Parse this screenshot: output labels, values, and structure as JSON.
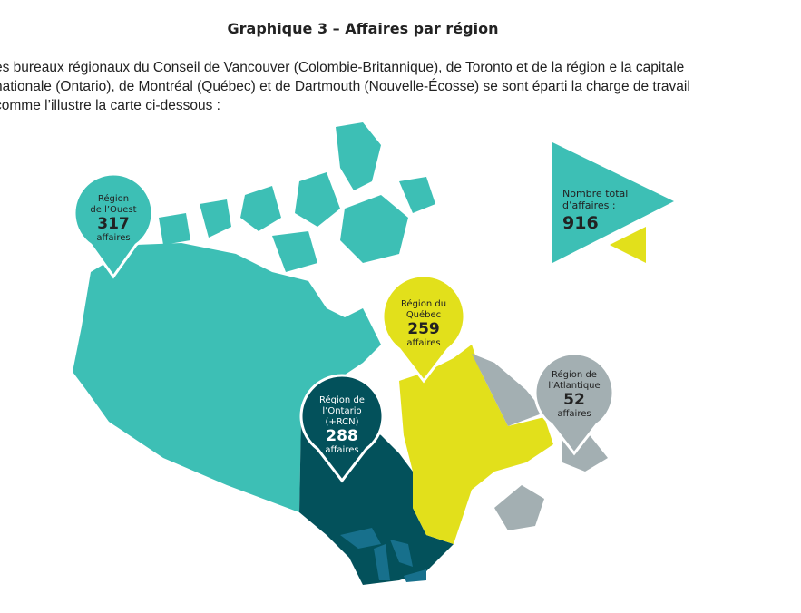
{
  "title": "Graphique 3 – Affaires par région",
  "intro": "es bureaux régionaux du Conseil de Vancouver (Colombie-Britannique), de Toronto et de la région e la capitale nationale (Ontario), de Montréal (Québec) et de Dartmouth (Nouvelle-Écosse) se sont éparti la charge de travail comme l’illustre la carte ci-dessous :",
  "colors": {
    "west": "#3dbfb5",
    "ontario": "#03515b",
    "quebec": "#e2e01b",
    "atlantic": "#a3afb2",
    "lakes": "#17708c"
  },
  "total": {
    "label_line1": "Nombre total",
    "label_line2": "d’affaires :",
    "value": "916"
  },
  "regions": [
    {
      "id": "west",
      "line1": "Région",
      "line2": "de l’Ouest",
      "count": "317",
      "unit": "affaires"
    },
    {
      "id": "quebec",
      "line1": "Région du",
      "line2": "Québec",
      "count": "259",
      "unit": "affaires"
    },
    {
      "id": "ontario",
      "line1": "Région de",
      "line2": "l’Ontario",
      "line3": "(+RCN)",
      "count": "288",
      "unit": "affaires"
    },
    {
      "id": "atlantic",
      "line1": "Région de",
      "line2": "l’Atlantique",
      "count": "52",
      "unit": "affaires"
    }
  ]
}
